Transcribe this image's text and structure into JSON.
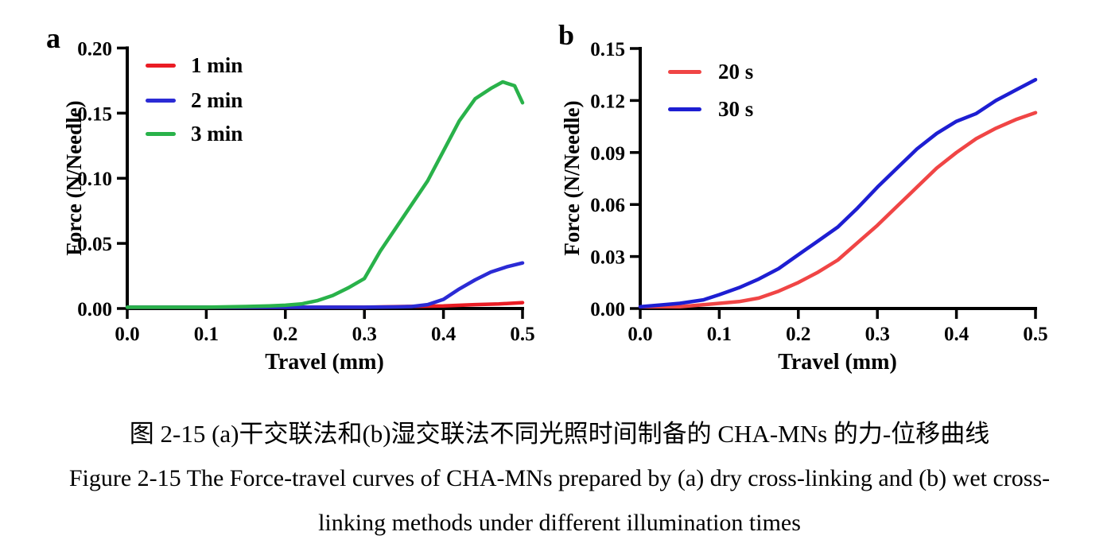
{
  "figure": {
    "panel_a_label": "a",
    "panel_b_label": "b",
    "caption_zh": "图 2-15 (a)干交联法和(b)湿交联法不同光照时间制备的 CHA-MNs 的力-位移曲线",
    "caption_en_line1": "Figure 2-15 The Force-travel curves of CHA-MNs prepared by (a) dry cross-linking and (b) wet cross-",
    "caption_en_line2": "linking methods under different illumination times"
  },
  "chart_data": [
    {
      "id": "a",
      "type": "line",
      "title": "",
      "xlabel": "Travel (mm)",
      "ylabel": "Force (N/Needle)",
      "xlim": [
        0.0,
        0.5
      ],
      "ylim": [
        0.0,
        0.2
      ],
      "xticks": [
        0.0,
        0.1,
        0.2,
        0.3,
        0.4,
        0.5
      ],
      "xtick_labels": [
        "0.0",
        "0.1",
        "0.2",
        "0.3",
        "0.4",
        "0.5"
      ],
      "yticks": [
        0.0,
        0.05,
        0.1,
        0.15,
        0.2
      ],
      "ytick_labels": [
        "0.00",
        "0.05",
        "0.10",
        "0.15",
        "0.20"
      ],
      "grid": false,
      "legend_position": "top-left-inside",
      "series": [
        {
          "name": "1 min",
          "color": "#ea1c24",
          "x": [
            0,
            0.05,
            0.1,
            0.15,
            0.2,
            0.25,
            0.3,
            0.35,
            0.4,
            0.44,
            0.47,
            0.5
          ],
          "y": [
            0.001,
            0.001,
            0.001,
            0.001,
            0.001,
            0.001,
            0.001,
            0.0015,
            0.002,
            0.003,
            0.0035,
            0.0045
          ]
        },
        {
          "name": "2 min",
          "color": "#2b2bd5",
          "x": [
            0,
            0.05,
            0.1,
            0.15,
            0.2,
            0.25,
            0.3,
            0.34,
            0.36,
            0.38,
            0.4,
            0.42,
            0.44,
            0.46,
            0.48,
            0.5
          ],
          "y": [
            0.001,
            0.001,
            0.001,
            0.001,
            0.001,
            0.001,
            0.001,
            0.0012,
            0.0015,
            0.003,
            0.007,
            0.015,
            0.022,
            0.028,
            0.032,
            0.035
          ]
        },
        {
          "name": "3 min",
          "color": "#29b24a",
          "x": [
            0,
            0.05,
            0.1,
            0.15,
            0.18,
            0.2,
            0.22,
            0.24,
            0.26,
            0.28,
            0.3,
            0.32,
            0.34,
            0.36,
            0.38,
            0.4,
            0.42,
            0.44,
            0.46,
            0.475,
            0.49,
            0.5
          ],
          "y": [
            0.001,
            0.001,
            0.001,
            0.0015,
            0.002,
            0.0025,
            0.0035,
            0.006,
            0.01,
            0.016,
            0.023,
            0.044,
            0.062,
            0.08,
            0.098,
            0.121,
            0.144,
            0.161,
            0.169,
            0.174,
            0.171,
            0.158
          ]
        }
      ]
    },
    {
      "id": "b",
      "type": "line",
      "title": "",
      "xlabel": "Travel (mm)",
      "ylabel": "Force (N/Needle)",
      "xlim": [
        0.0,
        0.5
      ],
      "ylim": [
        0.0,
        0.15
      ],
      "xticks": [
        0.0,
        0.1,
        0.2,
        0.3,
        0.4,
        0.5
      ],
      "xtick_labels": [
        "0.0",
        "0.1",
        "0.2",
        "0.3",
        "0.4",
        "0.5"
      ],
      "yticks": [
        0.0,
        0.03,
        0.06,
        0.09,
        0.12,
        0.15
      ],
      "ytick_labels": [
        "0.00",
        "0.03",
        "0.06",
        "0.09",
        "0.12",
        "0.15"
      ],
      "grid": false,
      "legend_position": "top-left-inside",
      "series": [
        {
          "name": "20 s",
          "color": "#f04545",
          "x": [
            0,
            0.05,
            0.1,
            0.125,
            0.15,
            0.175,
            0.2,
            0.225,
            0.25,
            0.275,
            0.3,
            0.325,
            0.35,
            0.375,
            0.4,
            0.425,
            0.45,
            0.475,
            0.5
          ],
          "y": [
            0.001,
            0.001,
            0.003,
            0.004,
            0.006,
            0.01,
            0.015,
            0.021,
            0.028,
            0.038,
            0.048,
            0.059,
            0.07,
            0.081,
            0.09,
            0.098,
            0.104,
            0.109,
            0.113
          ]
        },
        {
          "name": "30 s",
          "color": "#1d1ed2",
          "x": [
            0,
            0.05,
            0.08,
            0.1,
            0.125,
            0.15,
            0.175,
            0.2,
            0.225,
            0.25,
            0.275,
            0.3,
            0.325,
            0.35,
            0.375,
            0.4,
            0.425,
            0.45,
            0.475,
            0.5
          ],
          "y": [
            0.001,
            0.003,
            0.005,
            0.008,
            0.012,
            0.017,
            0.023,
            0.031,
            0.039,
            0.047,
            0.058,
            0.07,
            0.081,
            0.092,
            0.101,
            0.108,
            0.1125,
            0.12,
            0.126,
            0.132
          ]
        }
      ]
    }
  ]
}
